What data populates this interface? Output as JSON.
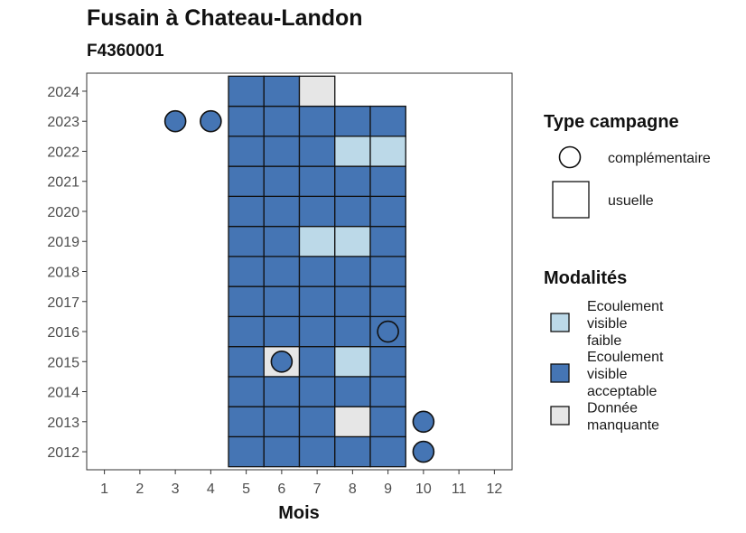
{
  "chart_data": {
    "type": "heatmap",
    "title": "Fusain à Chateau-Landon",
    "subtitle": "F4360001",
    "xlabel": "Mois",
    "ylabel": "",
    "x_ticks": [
      "1",
      "2",
      "3",
      "4",
      "5",
      "6",
      "7",
      "8",
      "9",
      "10",
      "11",
      "12"
    ],
    "y_ticks": [
      "2012",
      "2013",
      "2014",
      "2015",
      "2016",
      "2017",
      "2018",
      "2019",
      "2020",
      "2021",
      "2022",
      "2023",
      "2024"
    ],
    "xlim": [
      0.5,
      12.5
    ],
    "ylim": [
      2011.4,
      2024.6
    ],
    "grid": false,
    "colors": {
      "Ecoulement visible faible": "#bcd9e8",
      "Ecoulement visible acceptable": "#4575b4",
      "Donnée manquante": "#e6e6e6"
    },
    "cells": [
      {
        "year": 2012,
        "month": 5,
        "modalite": "Ecoulement visible acceptable"
      },
      {
        "year": 2012,
        "month": 6,
        "modalite": "Ecoulement visible acceptable"
      },
      {
        "year": 2012,
        "month": 7,
        "modalite": "Ecoulement visible acceptable"
      },
      {
        "year": 2012,
        "month": 8,
        "modalite": "Ecoulement visible acceptable"
      },
      {
        "year": 2012,
        "month": 9,
        "modalite": "Ecoulement visible acceptable"
      },
      {
        "year": 2012,
        "month": 10,
        "modalite": "Ecoulement visible acceptable",
        "type": "complémentaire"
      },
      {
        "year": 2013,
        "month": 5,
        "modalite": "Ecoulement visible acceptable"
      },
      {
        "year": 2013,
        "month": 6,
        "modalite": "Ecoulement visible acceptable"
      },
      {
        "year": 2013,
        "month": 7,
        "modalite": "Ecoulement visible acceptable"
      },
      {
        "year": 2013,
        "month": 8,
        "modalite": "Donnée manquante"
      },
      {
        "year": 2013,
        "month": 9,
        "modalite": "Ecoulement visible acceptable"
      },
      {
        "year": 2013,
        "month": 10,
        "modalite": "Ecoulement visible acceptable",
        "type": "complémentaire"
      },
      {
        "year": 2014,
        "month": 5,
        "modalite": "Ecoulement visible acceptable"
      },
      {
        "year": 2014,
        "month": 6,
        "modalite": "Ecoulement visible acceptable"
      },
      {
        "year": 2014,
        "month": 7,
        "modalite": "Ecoulement visible acceptable"
      },
      {
        "year": 2014,
        "month": 8,
        "modalite": "Ecoulement visible acceptable"
      },
      {
        "year": 2014,
        "month": 9,
        "modalite": "Ecoulement visible acceptable"
      },
      {
        "year": 2015,
        "month": 5,
        "modalite": "Ecoulement visible acceptable"
      },
      {
        "year": 2015,
        "month": 6,
        "modalite": "Donnée manquante"
      },
      {
        "year": 2015,
        "month": 6,
        "modalite": "Ecoulement visible acceptable",
        "type": "complémentaire"
      },
      {
        "year": 2015,
        "month": 7,
        "modalite": "Ecoulement visible acceptable"
      },
      {
        "year": 2015,
        "month": 8,
        "modalite": "Ecoulement visible faible"
      },
      {
        "year": 2015,
        "month": 9,
        "modalite": "Ecoulement visible acceptable"
      },
      {
        "year": 2016,
        "month": 5,
        "modalite": "Ecoulement visible acceptable"
      },
      {
        "year": 2016,
        "month": 6,
        "modalite": "Ecoulement visible acceptable"
      },
      {
        "year": 2016,
        "month": 7,
        "modalite": "Ecoulement visible acceptable"
      },
      {
        "year": 2016,
        "month": 8,
        "modalite": "Ecoulement visible acceptable"
      },
      {
        "year": 2016,
        "month": 9,
        "modalite": "Ecoulement visible acceptable"
      },
      {
        "year": 2016,
        "month": 9,
        "modalite": "Ecoulement visible acceptable",
        "type": "complémentaire"
      },
      {
        "year": 2017,
        "month": 5,
        "modalite": "Ecoulement visible acceptable"
      },
      {
        "year": 2017,
        "month": 6,
        "modalite": "Ecoulement visible acceptable"
      },
      {
        "year": 2017,
        "month": 7,
        "modalite": "Ecoulement visible acceptable"
      },
      {
        "year": 2017,
        "month": 8,
        "modalite": "Ecoulement visible acceptable"
      },
      {
        "year": 2017,
        "month": 9,
        "modalite": "Ecoulement visible acceptable"
      },
      {
        "year": 2018,
        "month": 5,
        "modalite": "Ecoulement visible acceptable"
      },
      {
        "year": 2018,
        "month": 6,
        "modalite": "Ecoulement visible acceptable"
      },
      {
        "year": 2018,
        "month": 7,
        "modalite": "Ecoulement visible acceptable"
      },
      {
        "year": 2018,
        "month": 8,
        "modalite": "Ecoulement visible acceptable"
      },
      {
        "year": 2018,
        "month": 9,
        "modalite": "Ecoulement visible acceptable"
      },
      {
        "year": 2019,
        "month": 5,
        "modalite": "Ecoulement visible acceptable"
      },
      {
        "year": 2019,
        "month": 6,
        "modalite": "Ecoulement visible acceptable"
      },
      {
        "year": 2019,
        "month": 7,
        "modalite": "Ecoulement visible faible"
      },
      {
        "year": 2019,
        "month": 8,
        "modalite": "Ecoulement visible faible"
      },
      {
        "year": 2019,
        "month": 9,
        "modalite": "Ecoulement visible acceptable"
      },
      {
        "year": 2020,
        "month": 5,
        "modalite": "Ecoulement visible acceptable"
      },
      {
        "year": 2020,
        "month": 6,
        "modalite": "Ecoulement visible acceptable"
      },
      {
        "year": 2020,
        "month": 7,
        "modalite": "Ecoulement visible acceptable"
      },
      {
        "year": 2020,
        "month": 8,
        "modalite": "Ecoulement visible acceptable"
      },
      {
        "year": 2020,
        "month": 9,
        "modalite": "Ecoulement visible acceptable"
      },
      {
        "year": 2021,
        "month": 5,
        "modalite": "Ecoulement visible acceptable"
      },
      {
        "year": 2021,
        "month": 6,
        "modalite": "Ecoulement visible acceptable"
      },
      {
        "year": 2021,
        "month": 7,
        "modalite": "Ecoulement visible acceptable"
      },
      {
        "year": 2021,
        "month": 8,
        "modalite": "Ecoulement visible acceptable"
      },
      {
        "year": 2021,
        "month": 9,
        "modalite": "Ecoulement visible acceptable"
      },
      {
        "year": 2022,
        "month": 5,
        "modalite": "Ecoulement visible acceptable"
      },
      {
        "year": 2022,
        "month": 6,
        "modalite": "Ecoulement visible acceptable"
      },
      {
        "year": 2022,
        "month": 7,
        "modalite": "Ecoulement visible acceptable"
      },
      {
        "year": 2022,
        "month": 8,
        "modalite": "Ecoulement visible faible"
      },
      {
        "year": 2022,
        "month": 9,
        "modalite": "Ecoulement visible faible"
      },
      {
        "year": 2023,
        "month": 3,
        "modalite": "Ecoulement visible acceptable",
        "type": "complémentaire"
      },
      {
        "year": 2023,
        "month": 4,
        "modalite": "Ecoulement visible acceptable",
        "type": "complémentaire"
      },
      {
        "year": 2023,
        "month": 5,
        "modalite": "Ecoulement visible acceptable"
      },
      {
        "year": 2023,
        "month": 6,
        "modalite": "Ecoulement visible acceptable"
      },
      {
        "year": 2023,
        "month": 7,
        "modalite": "Ecoulement visible acceptable"
      },
      {
        "year": 2023,
        "month": 8,
        "modalite": "Ecoulement visible acceptable"
      },
      {
        "year": 2023,
        "month": 9,
        "modalite": "Ecoulement visible acceptable"
      },
      {
        "year": 2024,
        "month": 5,
        "modalite": "Ecoulement visible acceptable"
      },
      {
        "year": 2024,
        "month": 6,
        "modalite": "Ecoulement visible acceptable"
      },
      {
        "year": 2024,
        "month": 7,
        "modalite": "Donnée manquante"
      }
    ],
    "legend": {
      "type_title": "Type campagne",
      "type_items": [
        {
          "label": "complémentaire",
          "shape": "circle"
        },
        {
          "label": "usuelle",
          "shape": "square"
        }
      ],
      "modalite_title": "Modalités",
      "modalite_items": [
        {
          "lines": [
            "Ecoulement",
            "visible",
            "faible"
          ],
          "key": "Ecoulement visible faible"
        },
        {
          "lines": [
            "Ecoulement",
            "visible",
            "acceptable"
          ],
          "key": "Ecoulement visible acceptable"
        },
        {
          "lines": [
            "Donnée",
            "manquante"
          ],
          "key": "Donnée manquante"
        }
      ],
      "position": "right"
    }
  }
}
